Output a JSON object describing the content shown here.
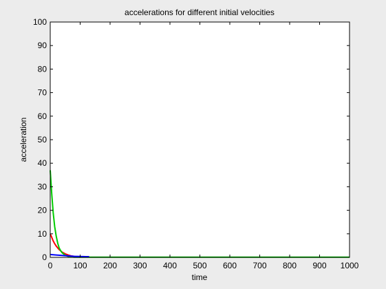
{
  "chart_data": {
    "type": "line",
    "title": "accelerations for different initial velocities",
    "xlabel": "time",
    "ylabel": "acceleration",
    "xlim": [
      0,
      1000
    ],
    "ylim": [
      0,
      100
    ],
    "xticks": [
      0,
      100,
      200,
      300,
      400,
      500,
      600,
      700,
      800,
      900,
      1000
    ],
    "yticks": [
      0,
      10,
      20,
      30,
      40,
      50,
      60,
      70,
      80,
      90,
      100
    ],
    "grid": false,
    "legend": "none",
    "background": "#ececec",
    "axes_background": "#ffffff",
    "series": [
      {
        "color": "#ff0000",
        "x": [
          0,
          5,
          10,
          15,
          20,
          25,
          30,
          40,
          50,
          60,
          70,
          80,
          90,
          100
        ],
        "y": [
          10,
          8.5,
          7.0,
          5.8,
          4.8,
          4.0,
          3.3,
          2.2,
          1.5,
          1.0,
          0.6,
          0.4,
          0.2,
          0.1
        ]
      },
      {
        "color": "#00cc00",
        "x": [
          0,
          5,
          10,
          15,
          20,
          25,
          30,
          35,
          40,
          50,
          60,
          70,
          80,
          1000
        ],
        "y": [
          37,
          27,
          19,
          13,
          9,
          6,
          4,
          2.8,
          1.9,
          0.9,
          0.4,
          0.2,
          0.1,
          0.1
        ]
      },
      {
        "color": "#0000ff",
        "x": [
          0,
          20,
          40,
          60,
          80,
          100,
          120,
          130
        ],
        "y": [
          1.2,
          1.0,
          0.8,
          0.6,
          0.45,
          0.35,
          0.3,
          0.3
        ]
      }
    ]
  }
}
